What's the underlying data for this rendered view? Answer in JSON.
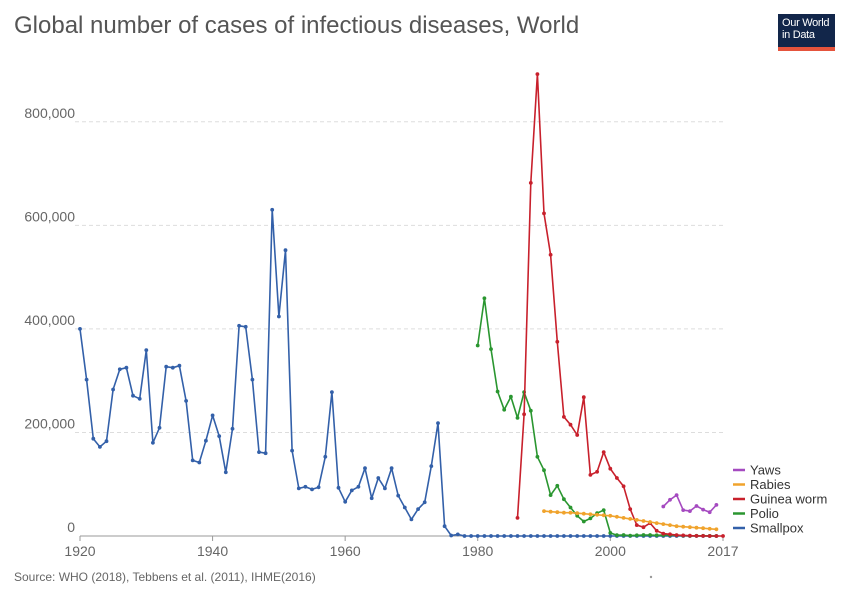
{
  "title": "Global number of cases of infectious diseases, World",
  "logo": {
    "line1": "Our World",
    "line2": "in Data"
  },
  "source": "Source: WHO (2018), Tebbens et al. (2011), IHME(2016)",
  "colors": {
    "Smallpox": "#3360a9",
    "Polio": "#2a9630",
    "Guinea worm": "#c8202c",
    "Rabies": "#f0a32c",
    "Yaws": "#a54ac0",
    "grid": "#dddddd",
    "axis": "#999999"
  },
  "chart_data": {
    "type": "line",
    "title": "Global number of cases of infectious diseases, World",
    "xlim": [
      1920,
      2017
    ],
    "ylim": [
      0,
      900000
    ],
    "x_ticks": [
      "1920",
      "1940",
      "1960",
      "1980",
      "2000",
      "2017"
    ],
    "y_ticks": [
      "0",
      "200,000",
      "400,000",
      "600,000",
      "800,000"
    ],
    "y_tick_values": [
      0,
      200000,
      400000,
      600000,
      800000
    ],
    "x_tick_values": [
      1920,
      1940,
      1960,
      1980,
      2000,
      2017
    ],
    "grid": true,
    "legend_position": "right",
    "legend_order": [
      "Yaws",
      "Rabies",
      "Guinea worm",
      "Polio",
      "Smallpox"
    ],
    "series": [
      {
        "name": "Smallpox",
        "points": [
          [
            1920,
            400000
          ],
          [
            1921,
            302000
          ],
          [
            1922,
            188000
          ],
          [
            1923,
            172000
          ],
          [
            1924,
            183000
          ],
          [
            1925,
            283000
          ],
          [
            1926,
            322000
          ],
          [
            1927,
            325000
          ],
          [
            1928,
            271000
          ],
          [
            1929,
            265000
          ],
          [
            1930,
            359000
          ],
          [
            1931,
            180000
          ],
          [
            1932,
            209000
          ],
          [
            1933,
            327000
          ],
          [
            1934,
            325000
          ],
          [
            1935,
            329000
          ],
          [
            1936,
            261000
          ],
          [
            1937,
            146000
          ],
          [
            1938,
            142000
          ],
          [
            1939,
            184000
          ],
          [
            1940,
            233000
          ],
          [
            1941,
            193000
          ],
          [
            1942,
            123000
          ],
          [
            1943,
            207000
          ],
          [
            1944,
            406000
          ],
          [
            1945,
            404000
          ],
          [
            1946,
            302000
          ],
          [
            1947,
            162000
          ],
          [
            1948,
            160000
          ],
          [
            1949,
            630000
          ],
          [
            1950,
            424000
          ],
          [
            1951,
            552000
          ],
          [
            1952,
            165000
          ],
          [
            1953,
            92000
          ],
          [
            1954,
            95000
          ],
          [
            1955,
            90000
          ],
          [
            1956,
            94000
          ],
          [
            1957,
            153000
          ],
          [
            1958,
            278000
          ],
          [
            1959,
            93000
          ],
          [
            1960,
            66000
          ],
          [
            1961,
            88000
          ],
          [
            1962,
            95000
          ],
          [
            1963,
            131000
          ],
          [
            1964,
            73000
          ],
          [
            1965,
            112000
          ],
          [
            1966,
            92000
          ],
          [
            1967,
            131000
          ],
          [
            1968,
            78000
          ],
          [
            1969,
            55000
          ],
          [
            1970,
            32000
          ],
          [
            1971,
            52000
          ],
          [
            1972,
            65000
          ],
          [
            1973,
            135000
          ],
          [
            1974,
            218000
          ],
          [
            1975,
            19000
          ],
          [
            1976,
            1000
          ],
          [
            1977,
            3000
          ],
          [
            1978,
            0
          ],
          [
            1979,
            0
          ],
          [
            1980,
            0
          ],
          [
            1981,
            0
          ],
          [
            1982,
            0
          ],
          [
            1983,
            0
          ],
          [
            1984,
            0
          ],
          [
            1985,
            0
          ],
          [
            1986,
            0
          ],
          [
            1987,
            0
          ],
          [
            1988,
            0
          ],
          [
            1989,
            0
          ],
          [
            1990,
            0
          ],
          [
            1991,
            0
          ],
          [
            1992,
            0
          ],
          [
            1993,
            0
          ],
          [
            1994,
            0
          ],
          [
            1995,
            0
          ],
          [
            1996,
            0
          ],
          [
            1997,
            0
          ],
          [
            1998,
            0
          ],
          [
            1999,
            0
          ],
          [
            2000,
            0
          ],
          [
            2001,
            0
          ],
          [
            2002,
            0
          ],
          [
            2003,
            0
          ],
          [
            2004,
            0
          ],
          [
            2005,
            0
          ],
          [
            2006,
            0
          ],
          [
            2007,
            0
          ],
          [
            2008,
            0
          ],
          [
            2009,
            0
          ],
          [
            2010,
            0
          ],
          [
            2011,
            0
          ],
          [
            2012,
            0
          ],
          [
            2013,
            0
          ],
          [
            2014,
            0
          ],
          [
            2015,
            0
          ],
          [
            2016,
            0
          ]
        ]
      },
      {
        "name": "Polio",
        "points": [
          [
            1980,
            368000
          ],
          [
            1981,
            459000
          ],
          [
            1982,
            361000
          ],
          [
            1983,
            279000
          ],
          [
            1984,
            244000
          ],
          [
            1985,
            269000
          ],
          [
            1986,
            228000
          ],
          [
            1987,
            278000
          ],
          [
            1988,
            242000
          ],
          [
            1989,
            153000
          ],
          [
            1990,
            127000
          ],
          [
            1991,
            79000
          ],
          [
            1992,
            97000
          ],
          [
            1993,
            71000
          ],
          [
            1994,
            55000
          ],
          [
            1995,
            39000
          ],
          [
            1996,
            28000
          ],
          [
            1997,
            34000
          ],
          [
            1998,
            44000
          ],
          [
            1999,
            50000
          ],
          [
            2000,
            6000
          ],
          [
            2001,
            1500
          ],
          [
            2002,
            2000
          ],
          [
            2003,
            800
          ],
          [
            2004,
            1300
          ],
          [
            2005,
            2000
          ],
          [
            2006,
            2000
          ],
          [
            2007,
            1300
          ],
          [
            2008,
            1700
          ],
          [
            2009,
            1700
          ],
          [
            2010,
            1400
          ],
          [
            2011,
            700
          ],
          [
            2012,
            220
          ],
          [
            2013,
            400
          ],
          [
            2014,
            360
          ],
          [
            2015,
            100
          ],
          [
            2016,
            50
          ]
        ]
      },
      {
        "name": "Guinea worm",
        "points": [
          [
            1986,
            35000
          ],
          [
            1987,
            235000
          ],
          [
            1988,
            682000
          ],
          [
            1989,
            892000
          ],
          [
            1990,
            623000
          ],
          [
            1991,
            543000
          ],
          [
            1992,
            375000
          ],
          [
            1993,
            230000
          ],
          [
            1994,
            215000
          ],
          [
            1995,
            195000
          ],
          [
            1996,
            268000
          ],
          [
            1997,
            118000
          ],
          [
            1998,
            124000
          ],
          [
            1999,
            162000
          ],
          [
            2000,
            130000
          ],
          [
            2001,
            112000
          ],
          [
            2002,
            96000
          ],
          [
            2003,
            52000
          ],
          [
            2004,
            21000
          ],
          [
            2005,
            17000
          ],
          [
            2006,
            25000
          ],
          [
            2007,
            10000
          ],
          [
            2008,
            4600
          ],
          [
            2009,
            3200
          ],
          [
            2010,
            1800
          ],
          [
            2011,
            1100
          ],
          [
            2012,
            540
          ],
          [
            2013,
            150
          ],
          [
            2014,
            130
          ],
          [
            2015,
            20
          ],
          [
            2016,
            25
          ],
          [
            2017,
            30
          ]
        ]
      },
      {
        "name": "Rabies",
        "points": [
          [
            1990,
            48000
          ],
          [
            1991,
            47000
          ],
          [
            1992,
            46000
          ],
          [
            1993,
            45000
          ],
          [
            1994,
            45000
          ],
          [
            1995,
            44000
          ],
          [
            1996,
            43000
          ],
          [
            1997,
            42000
          ],
          [
            1998,
            41000
          ],
          [
            1999,
            40000
          ],
          [
            2000,
            39000
          ],
          [
            2001,
            37000
          ],
          [
            2002,
            35000
          ],
          [
            2003,
            33000
          ],
          [
            2004,
            31000
          ],
          [
            2005,
            29000
          ],
          [
            2006,
            27000
          ],
          [
            2007,
            25000
          ],
          [
            2008,
            23000
          ],
          [
            2009,
            21000
          ],
          [
            2010,
            19000
          ],
          [
            2011,
            18000
          ],
          [
            2012,
            17000
          ],
          [
            2013,
            16000
          ],
          [
            2014,
            15000
          ],
          [
            2015,
            14000
          ],
          [
            2016,
            13000
          ]
        ]
      },
      {
        "name": "Yaws",
        "points": [
          [
            2008,
            57000
          ],
          [
            2009,
            70000
          ],
          [
            2010,
            79000
          ],
          [
            2011,
            50000
          ],
          [
            2012,
            48000
          ],
          [
            2013,
            58000
          ],
          [
            2014,
            51000
          ],
          [
            2015,
            46000
          ],
          [
            2016,
            60000
          ]
        ]
      }
    ]
  }
}
